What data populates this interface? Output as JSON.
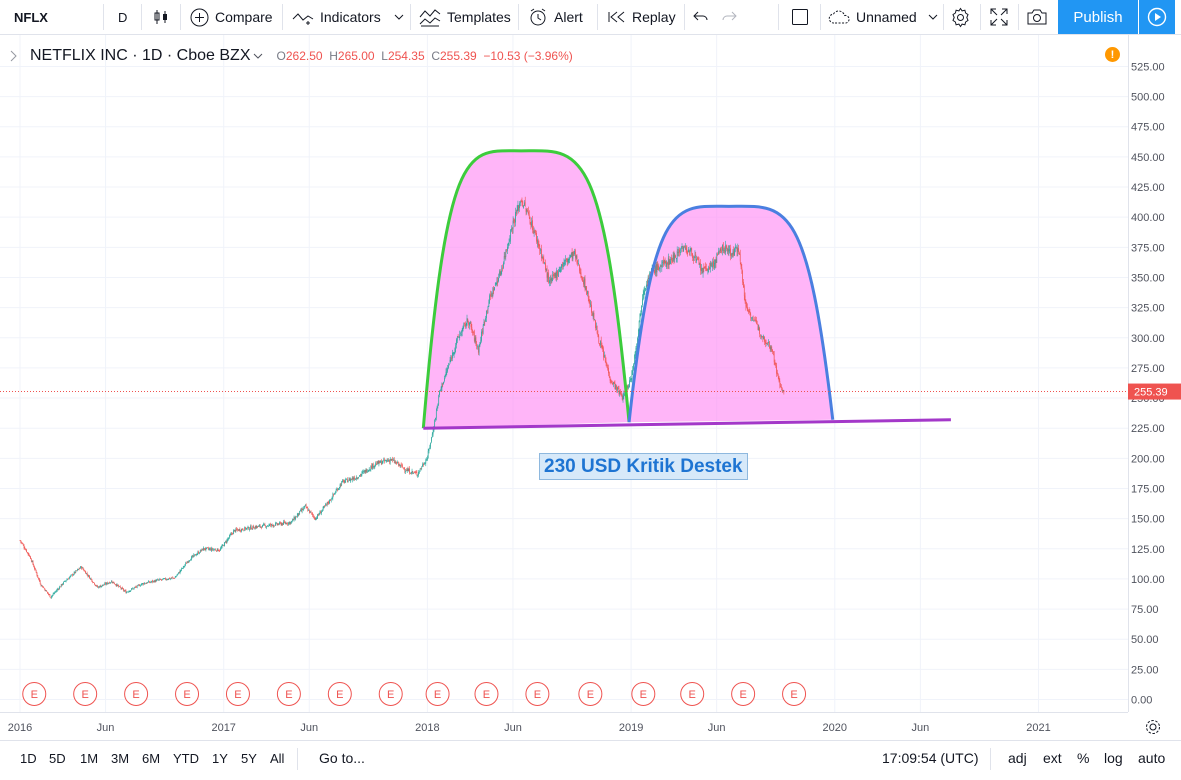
{
  "toolbar": {
    "symbol": "NFLX",
    "interval": "D",
    "compare_label": "Compare",
    "indicators_label": "Indicators",
    "templates_label": "Templates",
    "alert_label": "Alert",
    "replay_label": "Replay",
    "layout_name": "Unnamed",
    "publish_label": "Publish"
  },
  "legend": {
    "title": "NETFLIX INC · 1D · Cboe BZX",
    "open_key": "O",
    "open": "262.50",
    "high_key": "H",
    "high": "265.00",
    "low_key": "L",
    "low": "254.35",
    "close_key": "C",
    "close": "255.39",
    "change": "−10.53 (−3.96%)",
    "warning_icon": "!"
  },
  "annotation": {
    "text": "230 USD Kritik Destek"
  },
  "colors": {
    "up": "#26a69a",
    "down": "#ef5350",
    "pattern_fill": "#ff8df4",
    "arc_left": "#3ccc3c",
    "arc_right": "#4a7fe0",
    "support_line": "#a338c9",
    "price_line": "#ef5350"
  },
  "chart_data": {
    "type": "candlestick",
    "symbol": "NFLX",
    "interval": "1D",
    "last_price": "255.39",
    "y_axis": {
      "min": 0,
      "max": 525,
      "ticks": [
        "525.00",
        "500.00",
        "475.00",
        "450.00",
        "425.00",
        "400.00",
        "375.00",
        "350.00",
        "325.00",
        "300.00",
        "275.00",
        "250.00",
        "225.00",
        "200.00",
        "175.00",
        "150.00",
        "125.00",
        "100.00",
        "75.00",
        "50.00",
        "25.00",
        "0.00"
      ]
    },
    "x_axis": {
      "labels": [
        "2016",
        "Jun",
        "2017",
        "Jun",
        "2018",
        "Jun",
        "2019",
        "Jun",
        "2020",
        "Jun",
        "2021"
      ]
    },
    "price_path": [
      [
        2016.0,
        132
      ],
      [
        2016.05,
        118
      ],
      [
        2016.1,
        96
      ],
      [
        2016.15,
        85
      ],
      [
        2016.22,
        98
      ],
      [
        2016.3,
        110
      ],
      [
        2016.38,
        93
      ],
      [
        2016.45,
        98
      ],
      [
        2016.52,
        89
      ],
      [
        2016.6,
        96
      ],
      [
        2016.68,
        99
      ],
      [
        2016.76,
        101
      ],
      [
        2016.83,
        116
      ],
      [
        2016.9,
        125
      ],
      [
        2016.98,
        124
      ],
      [
        2017.05,
        140
      ],
      [
        2017.15,
        143
      ],
      [
        2017.25,
        145
      ],
      [
        2017.33,
        147
      ],
      [
        2017.4,
        160
      ],
      [
        2017.45,
        150
      ],
      [
        2017.52,
        165
      ],
      [
        2017.58,
        180
      ],
      [
        2017.66,
        185
      ],
      [
        2017.74,
        195
      ],
      [
        2017.82,
        199
      ],
      [
        2017.9,
        190
      ],
      [
        2017.95,
        187
      ],
      [
        2018.0,
        201
      ],
      [
        2018.03,
        225
      ],
      [
        2018.06,
        255
      ],
      [
        2018.1,
        275
      ],
      [
        2018.15,
        300
      ],
      [
        2018.2,
        315
      ],
      [
        2018.25,
        290
      ],
      [
        2018.3,
        330
      ],
      [
        2018.36,
        355
      ],
      [
        2018.42,
        395
      ],
      [
        2018.46,
        415
      ],
      [
        2018.5,
        400
      ],
      [
        2018.55,
        375
      ],
      [
        2018.6,
        345
      ],
      [
        2018.66,
        360
      ],
      [
        2018.72,
        370
      ],
      [
        2018.78,
        340
      ],
      [
        2018.84,
        300
      ],
      [
        2018.9,
        265
      ],
      [
        2018.96,
        250
      ],
      [
        2019.0,
        267
      ],
      [
        2019.03,
        300
      ],
      [
        2019.06,
        340
      ],
      [
        2019.1,
        355
      ],
      [
        2019.15,
        360
      ],
      [
        2019.2,
        365
      ],
      [
        2019.25,
        375
      ],
      [
        2019.3,
        370
      ],
      [
        2019.35,
        355
      ],
      [
        2019.4,
        360
      ],
      [
        2019.45,
        375
      ],
      [
        2019.5,
        370
      ],
      [
        2019.53,
        375
      ],
      [
        2019.56,
        328
      ],
      [
        2019.6,
        315
      ],
      [
        2019.65,
        300
      ],
      [
        2019.69,
        292
      ],
      [
        2019.73,
        260
      ],
      [
        2019.75,
        255.39
      ]
    ],
    "earnings_markers": [
      2016.07,
      2016.32,
      2016.57,
      2016.82,
      2017.07,
      2017.32,
      2017.57,
      2017.82,
      2018.05,
      2018.29,
      2018.54,
      2018.8,
      2019.06,
      2019.3,
      2019.55,
      2019.8
    ],
    "earnings_label": "E",
    "drawings": {
      "support_line": {
        "from": [
          2017.98,
          225
        ],
        "to": [
          2020.57,
          232
        ],
        "label": "230 USD Kritik Destek"
      },
      "arc_left": {
        "start": [
          2017.98,
          225
        ],
        "peak": [
          2018.46,
          455
        ],
        "end": [
          2018.99,
          230
        ]
      },
      "arc_right": {
        "start": [
          2018.99,
          230
        ],
        "peak": [
          2019.48,
          409
        ],
        "end": [
          2019.99,
          232
        ]
      }
    }
  },
  "bottom": {
    "ranges": [
      "1D",
      "5D",
      "1M",
      "3M",
      "6M",
      "YTD",
      "1Y",
      "5Y",
      "All"
    ],
    "goto_label": "Go to...",
    "clock": "17:09:54 (UTC)",
    "opts": [
      "adj",
      "ext",
      "%",
      "log",
      "auto"
    ]
  }
}
